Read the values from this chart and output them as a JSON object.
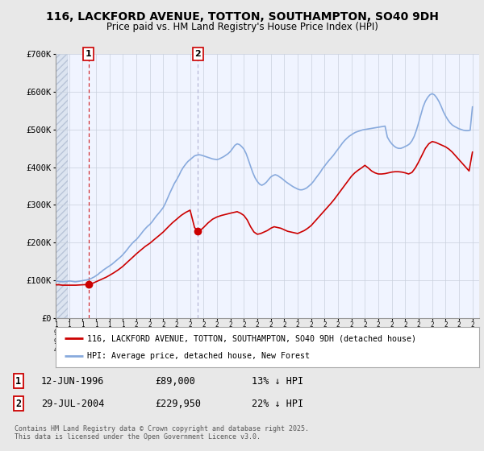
{
  "title": "116, LACKFORD AVENUE, TOTTON, SOUTHAMPTON, SO40 9DH",
  "subtitle": "Price paid vs. HM Land Registry's House Price Index (HPI)",
  "ylim": [
    0,
    700000
  ],
  "xlim_start": 1994.0,
  "xlim_end": 2025.5,
  "yticks": [
    0,
    100000,
    200000,
    300000,
    400000,
    500000,
    600000,
    700000
  ],
  "ytick_labels": [
    "£0",
    "£100K",
    "£200K",
    "£300K",
    "£400K",
    "£500K",
    "£600K",
    "£700K"
  ],
  "fig_bg_color": "#e8e8e8",
  "plot_bg_color": "#f0f4ff",
  "hatch_region_end": 1994.92,
  "grid_color": "#c8d0dc",
  "red_color": "#cc0000",
  "blue_color": "#88aadd",
  "sale1_x": 1996.44,
  "sale1_y": 89000,
  "sale2_x": 2004.57,
  "sale2_y": 229950,
  "sale1_label": "1",
  "sale2_label": "2",
  "legend_line1": "116, LACKFORD AVENUE, TOTTON, SOUTHAMPTON, SO40 9DH (detached house)",
  "legend_line2": "HPI: Average price, detached house, New Forest",
  "table_row1": [
    "1",
    "12-JUN-1996",
    "£89,000",
    "13% ↓ HPI"
  ],
  "table_row2": [
    "2",
    "29-JUL-2004",
    "£229,950",
    "22% ↓ HPI"
  ],
  "footer": "Contains HM Land Registry data © Crown copyright and database right 2025.\nThis data is licensed under the Open Government Licence v3.0.",
  "hpi_data_x": [
    1994.0,
    1994.08,
    1994.17,
    1994.25,
    1994.33,
    1994.42,
    1994.5,
    1994.58,
    1994.67,
    1994.75,
    1994.83,
    1994.92,
    1995.0,
    1995.08,
    1995.17,
    1995.25,
    1995.33,
    1995.42,
    1995.5,
    1995.58,
    1995.67,
    1995.75,
    1995.83,
    1995.92,
    1996.0,
    1996.08,
    1996.17,
    1996.25,
    1996.33,
    1996.42,
    1996.5,
    1996.58,
    1996.67,
    1996.75,
    1996.83,
    1996.92,
    1997.0,
    1997.08,
    1997.17,
    1997.25,
    1997.33,
    1997.42,
    1997.5,
    1997.58,
    1997.67,
    1997.75,
    1997.83,
    1997.92,
    1998.0,
    1998.17,
    1998.33,
    1998.5,
    1998.67,
    1998.83,
    1999.0,
    1999.17,
    1999.33,
    1999.5,
    1999.67,
    1999.83,
    2000.0,
    2000.17,
    2000.33,
    2000.5,
    2000.67,
    2000.83,
    2001.0,
    2001.17,
    2001.33,
    2001.5,
    2001.67,
    2001.83,
    2002.0,
    2002.17,
    2002.33,
    2002.5,
    2002.67,
    2002.83,
    2003.0,
    2003.17,
    2003.33,
    2003.5,
    2003.67,
    2003.83,
    2004.0,
    2004.17,
    2004.33,
    2004.5,
    2004.67,
    2004.83,
    2005.0,
    2005.17,
    2005.33,
    2005.5,
    2005.67,
    2005.83,
    2006.0,
    2006.17,
    2006.33,
    2006.5,
    2006.67,
    2006.83,
    2007.0,
    2007.17,
    2007.33,
    2007.5,
    2007.67,
    2007.83,
    2008.0,
    2008.17,
    2008.33,
    2008.5,
    2008.67,
    2008.83,
    2009.0,
    2009.17,
    2009.33,
    2009.5,
    2009.67,
    2009.83,
    2010.0,
    2010.17,
    2010.33,
    2010.5,
    2010.67,
    2010.83,
    2011.0,
    2011.17,
    2011.33,
    2011.5,
    2011.67,
    2011.83,
    2012.0,
    2012.17,
    2012.33,
    2012.5,
    2012.67,
    2012.83,
    2013.0,
    2013.17,
    2013.33,
    2013.5,
    2013.67,
    2013.83,
    2014.0,
    2014.17,
    2014.33,
    2014.5,
    2014.67,
    2014.83,
    2015.0,
    2015.17,
    2015.33,
    2015.5,
    2015.67,
    2015.83,
    2016.0,
    2016.17,
    2016.33,
    2016.5,
    2016.67,
    2016.83,
    2017.0,
    2017.17,
    2017.33,
    2017.5,
    2017.67,
    2017.83,
    2018.0,
    2018.17,
    2018.33,
    2018.5,
    2018.67,
    2018.83,
    2019.0,
    2019.17,
    2019.33,
    2019.5,
    2019.67,
    2019.83,
    2020.0,
    2020.17,
    2020.33,
    2020.5,
    2020.67,
    2020.83,
    2021.0,
    2021.17,
    2021.33,
    2021.5,
    2021.67,
    2021.83,
    2022.0,
    2022.17,
    2022.33,
    2022.5,
    2022.67,
    2022.83,
    2023.0,
    2023.17,
    2023.33,
    2023.5,
    2023.67,
    2023.83,
    2024.0,
    2024.17,
    2024.33,
    2024.5,
    2024.67,
    2024.83,
    2025.0
  ],
  "hpi_data_y": [
    98000,
    98000,
    97500,
    97000,
    97000,
    96500,
    96000,
    96000,
    96500,
    97000,
    97000,
    97500,
    98000,
    98000,
    97500,
    97000,
    96500,
    96000,
    96000,
    96500,
    97000,
    97500,
    98000,
    98500,
    99000,
    99500,
    100000,
    100500,
    101000,
    102000,
    103000,
    104000,
    105000,
    107000,
    108000,
    110000,
    112000,
    114000,
    116000,
    119000,
    121000,
    123000,
    126000,
    128000,
    130000,
    132000,
    134000,
    136000,
    138000,
    142000,
    147000,
    152000,
    157000,
    162000,
    168000,
    175000,
    182000,
    190000,
    197000,
    203000,
    208000,
    215000,
    222000,
    230000,
    237000,
    243000,
    248000,
    255000,
    263000,
    271000,
    278000,
    285000,
    293000,
    305000,
    318000,
    332000,
    345000,
    357000,
    367000,
    378000,
    390000,
    400000,
    408000,
    415000,
    420000,
    425000,
    430000,
    432000,
    433000,
    432000,
    430000,
    428000,
    426000,
    424000,
    422000,
    421000,
    420000,
    422000,
    425000,
    428000,
    432000,
    436000,
    442000,
    450000,
    458000,
    462000,
    460000,
    455000,
    448000,
    436000,
    420000,
    402000,
    385000,
    372000,
    362000,
    355000,
    352000,
    355000,
    360000,
    367000,
    374000,
    378000,
    380000,
    378000,
    374000,
    370000,
    365000,
    360000,
    356000,
    352000,
    348000,
    345000,
    342000,
    340000,
    340000,
    342000,
    345000,
    350000,
    355000,
    362000,
    370000,
    378000,
    386000,
    395000,
    403000,
    411000,
    418000,
    425000,
    432000,
    440000,
    448000,
    456000,
    464000,
    471000,
    477000,
    482000,
    486000,
    490000,
    493000,
    495000,
    497000,
    499000,
    500000,
    501000,
    502000,
    503000,
    504000,
    505000,
    506000,
    507000,
    508000,
    509000,
    480000,
    470000,
    462000,
    456000,
    452000,
    450000,
    450000,
    452000,
    455000,
    458000,
    462000,
    470000,
    482000,
    498000,
    518000,
    540000,
    560000,
    575000,
    585000,
    592000,
    595000,
    592000,
    585000,
    575000,
    562000,
    548000,
    536000,
    526000,
    518000,
    512000,
    508000,
    505000,
    502000,
    500000,
    498000,
    497000,
    497000,
    498000,
    560000
  ],
  "red_data_x": [
    1994.0,
    1994.25,
    1994.5,
    1994.75,
    1995.0,
    1995.25,
    1995.5,
    1995.75,
    1996.0,
    1996.25,
    1996.44,
    1996.75,
    1997.0,
    1997.25,
    1997.5,
    1997.75,
    1998.0,
    1998.33,
    1998.67,
    1999.0,
    1999.33,
    1999.67,
    2000.0,
    2000.33,
    2000.67,
    2001.0,
    2001.33,
    2001.67,
    2002.0,
    2002.33,
    2002.67,
    2003.0,
    2003.33,
    2003.67,
    2004.0,
    2004.33,
    2004.57,
    2004.75,
    2005.0,
    2005.33,
    2005.67,
    2006.0,
    2006.33,
    2006.67,
    2007.0,
    2007.25,
    2007.5,
    2007.75,
    2008.0,
    2008.25,
    2008.5,
    2008.75,
    2009.0,
    2009.25,
    2009.5,
    2009.75,
    2010.0,
    2010.25,
    2010.5,
    2010.75,
    2011.0,
    2011.25,
    2011.5,
    2011.75,
    2012.0,
    2012.25,
    2012.5,
    2012.75,
    2013.0,
    2013.25,
    2013.5,
    2013.75,
    2014.0,
    2014.25,
    2014.5,
    2014.75,
    2015.0,
    2015.25,
    2015.5,
    2015.75,
    2016.0,
    2016.25,
    2016.5,
    2016.75,
    2017.0,
    2017.25,
    2017.5,
    2017.75,
    2018.0,
    2018.25,
    2018.5,
    2018.75,
    2019.0,
    2019.25,
    2019.5,
    2019.75,
    2020.0,
    2020.25,
    2020.5,
    2020.75,
    2021.0,
    2021.25,
    2021.5,
    2021.75,
    2022.0,
    2022.25,
    2022.5,
    2022.75,
    2023.0,
    2023.25,
    2023.5,
    2023.75,
    2024.0,
    2024.25,
    2024.5,
    2024.75,
    2025.0
  ],
  "red_data_y": [
    88000,
    88000,
    87000,
    87000,
    87000,
    87000,
    87000,
    87500,
    88000,
    88500,
    89000,
    92000,
    96000,
    100000,
    104000,
    108000,
    113000,
    120000,
    128000,
    137000,
    148000,
    159000,
    170000,
    180000,
    190000,
    198000,
    208000,
    218000,
    228000,
    240000,
    252000,
    262000,
    272000,
    280000,
    286000,
    240000,
    229950,
    232000,
    240000,
    252000,
    262000,
    268000,
    272000,
    275000,
    278000,
    280000,
    282000,
    278000,
    272000,
    260000,
    242000,
    228000,
    222000,
    224000,
    228000,
    232000,
    238000,
    242000,
    240000,
    238000,
    234000,
    230000,
    228000,
    226000,
    224000,
    228000,
    232000,
    238000,
    245000,
    255000,
    265000,
    275000,
    285000,
    295000,
    305000,
    316000,
    328000,
    340000,
    352000,
    364000,
    376000,
    385000,
    392000,
    398000,
    405000,
    398000,
    390000,
    385000,
    382000,
    382000,
    383000,
    385000,
    387000,
    388000,
    388000,
    387000,
    385000,
    382000,
    386000,
    398000,
    414000,
    432000,
    450000,
    462000,
    468000,
    466000,
    462000,
    458000,
    454000,
    448000,
    440000,
    430000,
    420000,
    410000,
    400000,
    390000,
    440000
  ]
}
